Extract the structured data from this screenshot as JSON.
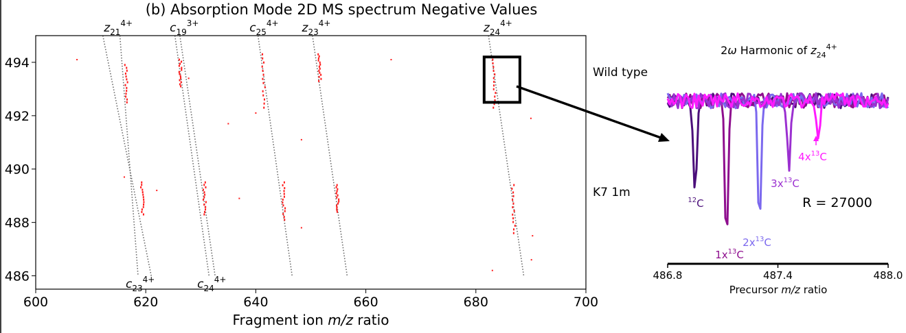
{
  "main_title": "(b) Absorption Mode 2D MS spectrum Negative Values",
  "colors": {
    "peak_red": "#ff1a1a",
    "trace_gray": "#666666",
    "c12": "#4b0f7a",
    "c13_1": "#8e0e8e",
    "c13_2": "#7b68ee",
    "c13_3": "#9b30d0",
    "c13_4": "#ff1aff",
    "iso_label": "#7a3aa0"
  },
  "chart_data": [
    {
      "type": "scatter",
      "xlabel_pre": "Fragment ion ",
      "xlabel_italic": "m/z",
      "xlabel_post": " ratio",
      "xlim": [
        600,
        700
      ],
      "ylim": [
        485.5,
        495
      ],
      "xticks": [
        "600",
        "620",
        "640",
        "660",
        "680",
        "700"
      ],
      "yticks": [
        "486",
        "488",
        "490",
        "492",
        "494"
      ],
      "region_labels": [
        "Wild type",
        "K7 1m"
      ],
      "ion_lines": [
        {
          "base": "z",
          "sub": "21",
          "sup": "4+",
          "pos": "top",
          "x_top": 615.3,
          "x_bottom": 618.6,
          "x_label": 615
        },
        {
          "base": "c",
          "sub": "23",
          "sup": "4+",
          "pos": "bottom",
          "x_top": 612.2,
          "x_bottom": 621.0,
          "x_label": 619
        },
        {
          "base": "c",
          "sub": "19",
          "sup": "3+",
          "pos": "top",
          "x_top": 625.3,
          "x_bottom": 631.5,
          "x_label": 627
        },
        {
          "base": "c",
          "sub": "24",
          "sup": "4+",
          "pos": "bottom",
          "x_top": 626.2,
          "x_bottom": 632.6,
          "x_label": 632
        },
        {
          "base": "c",
          "sub": "25",
          "sup": "4+",
          "pos": "top",
          "x_top": 640.4,
          "x_bottom": 646.6,
          "x_label": 641.5
        },
        {
          "base": "z",
          "sub": "23",
          "sup": "4+",
          "pos": "top",
          "x_top": 650.3,
          "x_bottom": 656.6,
          "x_label": 651
        },
        {
          "base": "z",
          "sub": "24",
          "sup": "4+",
          "pos": "top",
          "x_top": 682.3,
          "x_bottom": 688.7,
          "x_label": 684
        }
      ],
      "peak_clusters": [
        {
          "x": 616.5,
          "y": 493.2,
          "spread": 0.7
        },
        {
          "x": 626.3,
          "y": 493.6,
          "spread": 0.5
        },
        {
          "x": 641.4,
          "y": 493.3,
          "spread": 1.0
        },
        {
          "x": 651.6,
          "y": 493.8,
          "spread": 0.5
        },
        {
          "x": 683.3,
          "y": 493.2,
          "spread": 0.9
        },
        {
          "x": 619.4,
          "y": 488.9,
          "spread": 0.6
        },
        {
          "x": 630.7,
          "y": 488.9,
          "spread": 0.6
        },
        {
          "x": 645.1,
          "y": 488.8,
          "spread": 0.7
        },
        {
          "x": 654.9,
          "y": 488.9,
          "spread": 0.5
        },
        {
          "x": 686.9,
          "y": 488.5,
          "spread": 0.9
        }
      ],
      "isolated_peaks": [
        {
          "x": 607.5,
          "y": 494.1
        },
        {
          "x": 664.6,
          "y": 494.1
        },
        {
          "x": 635.0,
          "y": 491.7
        },
        {
          "x": 648.3,
          "y": 491.1
        },
        {
          "x": 690.0,
          "y": 491.9
        },
        {
          "x": 640.0,
          "y": 492.1
        },
        {
          "x": 622.0,
          "y": 489.2
        },
        {
          "x": 637.0,
          "y": 488.9
        },
        {
          "x": 616.1,
          "y": 489.7
        },
        {
          "x": 648.3,
          "y": 487.8
        },
        {
          "x": 690.3,
          "y": 487.5
        },
        {
          "x": 690.1,
          "y": 486.6
        },
        {
          "x": 683.0,
          "y": 486.2
        },
        {
          "x": 627.8,
          "y": 493.4
        }
      ],
      "zoom_box": {
        "x0": 681.5,
        "x1": 688,
        "y0": 492.5,
        "y1": 494.2
      }
    },
    {
      "type": "line",
      "title_pre": "2",
      "title_omega": "ω",
      "title_mid": " Harmonic of ",
      "title_ion_base": "z",
      "title_ion_sub": "24",
      "title_ion_sup": "4+",
      "xlabel_pre": "Precursor ",
      "xlabel_italic": "m/z",
      "xlabel_post": " ratio",
      "xlim": [
        486.8,
        488.0
      ],
      "xticks": [
        "486.8",
        "487.4",
        "488.0"
      ],
      "resolution_label": "R = 27000",
      "series": [
        {
          "label_pre": "",
          "label_sup": "12",
          "label_post": "C",
          "dip_x": 486.95,
          "dip_depth": 1.0
        },
        {
          "label_pre": "1x",
          "label_sup": "13",
          "label_post": "C",
          "dip_x": 487.12,
          "dip_depth": 1.45
        },
        {
          "label_pre": "2x",
          "label_sup": "13",
          "label_post": "C",
          "dip_x": 487.3,
          "dip_depth": 1.3
        },
        {
          "label_pre": "3x",
          "label_sup": "13",
          "label_post": "C",
          "dip_x": 487.46,
          "dip_depth": 0.75
        },
        {
          "label_pre": "4x",
          "label_sup": "13",
          "label_post": "C",
          "dip_x": 487.62,
          "dip_depth": 0.38
        }
      ]
    }
  ]
}
